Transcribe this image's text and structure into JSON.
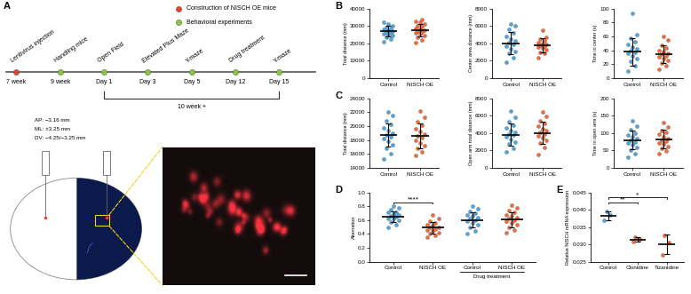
{
  "panel_A": {
    "panel_label": "A",
    "legend": [
      {
        "kind": "construction",
        "label": "Construction of NISCH OE mice",
        "color": "#e8412c"
      },
      {
        "kind": "behavior",
        "label": "Behavioral experiments",
        "color": "#8cc63f"
      }
    ],
    "events": [
      {
        "label": "Lentivirus injection",
        "time": "7 week",
        "kind": "construction"
      },
      {
        "label": "Handling mice",
        "time": "9 week",
        "kind": "behavior"
      },
      {
        "label": "Open Field",
        "time": "Day 1",
        "kind": "behavior"
      },
      {
        "label": "Elevated Plus Maze",
        "time": "Day 3",
        "kind": "behavior"
      },
      {
        "label": "Y-maze",
        "time": "Day 5",
        "kind": "behavior"
      },
      {
        "label": "Drug treatment",
        "time": "Day 12",
        "kind": "behavior"
      },
      {
        "label": "Y-maze",
        "time": "Day 15",
        "kind": "behavior"
      }
    ],
    "span_label": "10 week +",
    "span_events": [
      2,
      6
    ],
    "coordinates": [
      "AP: −3.16 mm",
      "ML: ±3.25 mm",
      "DV: −4.25/−3.25 mm"
    ]
  },
  "chart_data": [
    {
      "type": "dot",
      "panel_label": "B",
      "y_label": "Total distance (mm)",
      "categories": [
        "Control",
        "NISCH OE"
      ],
      "colors": [
        "#4da6e0",
        "#f26b38"
      ],
      "values": [
        [
          21000,
          22500,
          23500,
          24500,
          25000,
          25500,
          26000,
          26500,
          27000,
          27500,
          28000,
          28500,
          29000,
          30000,
          31000,
          32500
        ],
        [
          20500,
          22000,
          23500,
          24500,
          25500,
          26000,
          26500,
          27000,
          27500,
          28000,
          28500,
          29500,
          30000,
          31000,
          32000,
          33000,
          34000
        ]
      ],
      "mean": [
        27000,
        27500
      ],
      "sd": [
        3200,
        3600
      ],
      "ylim": [
        0,
        40000
      ],
      "yticks": [
        0,
        10000,
        20000,
        30000,
        40000
      ]
    },
    {
      "type": "dot",
      "y_label": "Center area distance (mm)",
      "categories": [
        "Control",
        "NISCH OE"
      ],
      "colors": [
        "#4da6e0",
        "#f26b38"
      ],
      "values": [
        [
          1800,
          2300,
          2800,
          3100,
          3400,
          3700,
          3900,
          4100,
          4300,
          4500,
          4800,
          5200,
          5600,
          6000,
          6200
        ],
        [
          2300,
          2800,
          3000,
          3300,
          3500,
          3600,
          3700,
          3800,
          3900,
          4000,
          4100,
          4300,
          4500,
          4700,
          5500
        ]
      ],
      "mean": [
        4000,
        3800
      ],
      "sd": [
        1300,
        800
      ],
      "ylim": [
        0,
        8000
      ],
      "yticks": [
        0,
        2000,
        4000,
        6000,
        8000
      ]
    },
    {
      "type": "dot",
      "y_label": "Time in center (s)",
      "categories": [
        "Control",
        "NISCH OE"
      ],
      "colors": [
        "#4da6e0",
        "#f26b38"
      ],
      "values": [
        [
          10,
          18,
          24,
          28,
          32,
          35,
          37,
          40,
          42,
          45,
          48,
          52,
          58,
          62,
          93
        ],
        [
          12,
          18,
          22,
          25,
          28,
          30,
          32,
          34,
          36,
          38,
          40,
          43,
          47,
          55,
          60
        ]
      ],
      "mean": [
        38,
        34
      ],
      "sd": [
        20,
        13
      ],
      "ylim": [
        0,
        100
      ],
      "yticks": [
        0,
        20,
        40,
        60,
        80,
        100
      ]
    },
    {
      "type": "dot",
      "panel_label": "C",
      "y_label": "Total distance (mm)",
      "categories": [
        "Control",
        "NISCH OE"
      ],
      "colors": [
        "#4da6e0",
        "#f26b38"
      ],
      "values": [
        [
          15200,
          16000,
          16800,
          17300,
          17800,
          18200,
          18500,
          18700,
          19000,
          19300,
          19700,
          20200,
          20800,
          21500,
          22000
        ],
        [
          15800,
          16300,
          16800,
          17200,
          17600,
          18000,
          18300,
          18600,
          18900,
          19200,
          19600,
          20100,
          20700,
          21300,
          22200
        ]
      ],
      "mean": [
        18700,
        18600
      ],
      "sd": [
        1700,
        1800
      ],
      "ylim": [
        14000,
        24000
      ],
      "yticks": [
        14000,
        16000,
        18000,
        20000,
        22000,
        24000
      ]
    },
    {
      "type": "dot",
      "y_label": "Open arm total distance (mm)",
      "categories": [
        "Control",
        "NISCH OE"
      ],
      "colors": [
        "#4da6e0",
        "#f26b38"
      ],
      "values": [
        [
          1800,
          2200,
          2700,
          3000,
          3300,
          3600,
          3800,
          3900,
          4100,
          4300,
          4600,
          4900,
          5300,
          5800,
          6500
        ],
        [
          1500,
          2300,
          2800,
          3200,
          3500,
          3700,
          3900,
          4100,
          4300,
          4500,
          4800,
          5100,
          5400,
          5900,
          6400
        ]
      ],
      "mean": [
        3800,
        4000
      ],
      "sd": [
        1300,
        1300
      ],
      "ylim": [
        0,
        8000
      ],
      "yticks": [
        0,
        2000,
        4000,
        6000,
        8000
      ]
    },
    {
      "type": "dot",
      "y_label": "Time in open arm (s)",
      "categories": [
        "Control",
        "NISCH OE"
      ],
      "colors": [
        "#4da6e0",
        "#f26b38"
      ],
      "values": [
        [
          30,
          40,
          50,
          58,
          65,
          70,
          75,
          80,
          84,
          88,
          95,
          100,
          110,
          120,
          135
        ],
        [
          40,
          48,
          55,
          62,
          68,
          72,
          77,
          80,
          85,
          90,
          96,
          102,
          108,
          118,
          130
        ]
      ],
      "mean": [
        80,
        82
      ],
      "sd": [
        28,
        27
      ],
      "ylim": [
        0,
        200
      ],
      "yticks": [
        0,
        50,
        100,
        150,
        200
      ]
    },
    {
      "type": "dot",
      "panel_label": "D",
      "y_label": "Alternation",
      "categories": [
        "Control",
        "NISCH OE",
        "Control",
        "NISCH OE"
      ],
      "colors": [
        "#4da6e0",
        "#f26b38",
        "#4da6e0",
        "#f26b38"
      ],
      "values": [
        [
          0.5,
          0.54,
          0.57,
          0.6,
          0.62,
          0.63,
          0.65,
          0.66,
          0.67,
          0.69,
          0.71,
          0.72,
          0.75,
          0.78,
          0.8
        ],
        [
          0.35,
          0.38,
          0.4,
          0.42,
          0.44,
          0.46,
          0.47,
          0.49,
          0.5,
          0.52,
          0.54,
          0.56,
          0.58,
          0.62,
          0.68
        ],
        [
          0.4,
          0.45,
          0.5,
          0.53,
          0.56,
          0.58,
          0.6,
          0.62,
          0.64,
          0.66,
          0.68,
          0.7,
          0.73,
          0.76,
          0.8
        ],
        [
          0.42,
          0.46,
          0.5,
          0.53,
          0.56,
          0.58,
          0.6,
          0.62,
          0.64,
          0.66,
          0.68,
          0.71,
          0.74,
          0.78,
          0.82
        ]
      ],
      "mean": [
        0.65,
        0.49,
        0.6,
        0.61
      ],
      "sd": [
        0.08,
        0.08,
        0.11,
        0.11
      ],
      "ylim": [
        0.0,
        1.0
      ],
      "yticks": [
        0.0,
        0.2,
        0.4,
        0.6,
        0.8,
        1.0
      ],
      "significance": [
        {
          "categories": [
            0,
            1
          ],
          "label": "****"
        }
      ],
      "group_bracket": {
        "categories": [
          2,
          3
        ],
        "label": "Drug treatment"
      }
    },
    {
      "type": "dot",
      "panel_label": "E",
      "y_label": "Relative NISCH mRNA expression",
      "categories": [
        "Control",
        "Clonidine",
        "Tizanidine"
      ],
      "colors": [
        "#4da6e0",
        "#f26b38",
        "#f26b38"
      ],
      "values": [
        [
          0.037,
          0.0385,
          0.0395
        ],
        [
          0.0308,
          0.0315,
          0.032
        ],
        [
          0.027,
          0.0305,
          0.0325
        ]
      ],
      "mean": [
        0.0383,
        0.0314,
        0.03
      ],
      "sd": [
        0.0012,
        0.0007,
        0.0028
      ],
      "ylim": [
        0.025,
        0.045
      ],
      "yticks": [
        0.025,
        {
          "value": 0.03,
          "label": "0.030"
        },
        0.035,
        {
          "value": 0.04,
          "label": "0.040"
        },
        0.045
      ],
      "significance": [
        {
          "categories": [
            0,
            1
          ],
          "label": "**"
        },
        {
          "categories": [
            0,
            2
          ],
          "label": "*"
        }
      ]
    }
  ]
}
